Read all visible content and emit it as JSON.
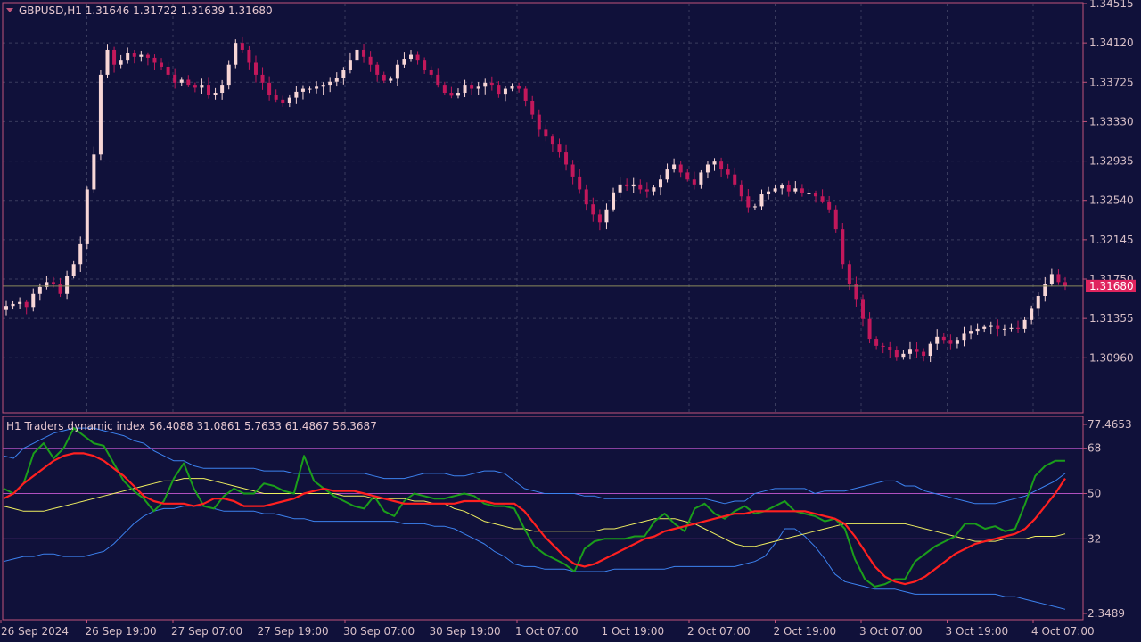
{
  "symbol_header": "GBPUSD,H1  1.31646 1.31722 1.31639 1.31680",
  "current_price_label": "1.31680",
  "indicator_header": "H1  Traders dynamic index 56.4088 31.0861 5.7633 61.4867 56.3687",
  "colors": {
    "background": "#10113a",
    "bull_candle": "#f7d6d6",
    "bear_candle": "#c2185b",
    "axis": "#c0547a",
    "grid": "#3a3c5e",
    "price_line": "#8a8a5a",
    "label_box": "#e0245e",
    "rsi_price_line": "#1b9e1b",
    "signal_line": "#ff2020",
    "market_base_line": "#f0f060",
    "volatility_band": "#3c82f0",
    "level_lines": "#b050c0"
  },
  "chart_data": [
    {
      "type": "candlestick",
      "title": "GBPUSD,H1",
      "price_axis_ticks": [
        "1.34515",
        "1.34120",
        "1.33725",
        "1.33330",
        "1.32935",
        "1.32540",
        "1.32145",
        "1.31750",
        "1.31355",
        "1.30960"
      ],
      "price_tick_values": [
        1.34515,
        1.3412,
        1.33725,
        1.3333,
        1.32935,
        1.3254,
        1.32145,
        1.3175,
        1.31355,
        1.3096
      ],
      "ylim": [
        1.3056,
        1.34515
      ],
      "time_axis_labels": [
        "26 Sep 2024",
        "26 Sep 19:00",
        "27 Sep 07:00",
        "27 Sep 19:00",
        "30 Sep 07:00",
        "30 Sep 19:00",
        "1 Oct 07:00",
        "1 Oct 19:00",
        "2 Oct 07:00",
        "2 Oct 19:00",
        "3 Oct 07:00",
        "3 Oct 19:00",
        "4 Oct 07:00"
      ],
      "last_close": 1.3168,
      "close_series": [
        1.3148,
        1.315,
        1.3152,
        1.3147,
        1.316,
        1.3167,
        1.3172,
        1.317,
        1.316,
        1.3178,
        1.319,
        1.321,
        1.3265,
        1.33,
        1.338,
        1.3405,
        1.339,
        1.3395,
        1.3402,
        1.3398,
        1.34,
        1.3397,
        1.3392,
        1.3388,
        1.338,
        1.3372,
        1.3375,
        1.337,
        1.3367,
        1.337,
        1.336,
        1.3362,
        1.337,
        1.339,
        1.3412,
        1.3405,
        1.3392,
        1.338,
        1.3372,
        1.336,
        1.3355,
        1.3352,
        1.3357,
        1.3363,
        1.3366,
        1.3366,
        1.3368,
        1.337,
        1.3373,
        1.3377,
        1.3385,
        1.3395,
        1.3405,
        1.3398,
        1.339,
        1.338,
        1.3374,
        1.3376,
        1.339,
        1.3396,
        1.34,
        1.3395,
        1.3385,
        1.338,
        1.337,
        1.3362,
        1.3359,
        1.3362,
        1.337,
        1.3366,
        1.3368,
        1.3372,
        1.337,
        1.3361,
        1.3366,
        1.3369,
        1.3366,
        1.3354,
        1.334,
        1.3325,
        1.3318,
        1.331,
        1.3302,
        1.329,
        1.3278,
        1.3265,
        1.325,
        1.324,
        1.3232,
        1.3245,
        1.3262,
        1.327,
        1.3268,
        1.327,
        1.3265,
        1.3263,
        1.3267,
        1.3275,
        1.3285,
        1.329,
        1.3282,
        1.3275,
        1.327,
        1.3282,
        1.329,
        1.3293,
        1.3285,
        1.328,
        1.327,
        1.3258,
        1.3247,
        1.3248,
        1.326,
        1.3263,
        1.3266,
        1.3269,
        1.3263,
        1.3266,
        1.3261,
        1.3261,
        1.3258,
        1.3253,
        1.3245,
        1.3225,
        1.319,
        1.317,
        1.3155,
        1.3135,
        1.3115,
        1.3108,
        1.3107,
        1.3104,
        1.3097,
        1.31,
        1.3105,
        1.3102,
        1.3098,
        1.311,
        1.3117,
        1.3114,
        1.311,
        1.3114,
        1.312,
        1.3123,
        1.3125,
        1.3127,
        1.3128,
        1.3125,
        1.3125,
        1.3126,
        1.3125,
        1.3134,
        1.3146,
        1.3158,
        1.317,
        1.318,
        1.3172,
        1.3168
      ]
    },
    {
      "type": "line",
      "title": "Traders dynamic index",
      "axis_ticks": [
        "77.4653",
        "68",
        "50",
        "32",
        "2.3489"
      ],
      "axis_tick_values": [
        77.4653,
        68,
        50,
        32,
        2.3489
      ],
      "ylim": [
        2.3489,
        77.4653
      ],
      "levels": [
        68,
        50,
        32
      ],
      "series": [
        {
          "key": "rsi_price_line",
          "values": [
            52,
            50,
            54,
            66,
            70,
            64,
            68,
            76,
            73,
            70,
            69,
            62,
            55,
            51,
            48,
            43,
            47,
            56,
            62,
            52,
            45,
            44,
            49,
            52,
            50,
            50,
            54,
            53,
            51,
            50,
            65,
            55,
            52,
            49,
            47,
            45,
            44,
            49,
            43,
            41,
            47,
            50,
            49,
            48,
            48,
            49,
            50,
            49,
            46,
            45,
            45,
            44,
            36,
            29,
            26,
            24,
            22,
            19,
            28,
            31,
            32,
            32,
            32,
            33,
            33,
            39,
            42,
            38,
            35,
            44,
            46,
            42,
            40,
            43,
            45,
            42,
            43,
            45,
            47,
            43,
            42,
            41,
            39,
            40,
            36,
            24,
            16,
            13,
            14,
            16,
            16,
            23,
            26,
            29,
            31,
            33,
            38,
            38,
            36,
            37,
            35,
            36,
            46,
            57,
            61,
            63,
            63
          ]
        },
        {
          "key": "signal_line",
          "values": [
            48,
            50,
            54,
            57,
            60,
            63,
            65,
            66,
            66,
            65,
            63,
            60,
            57,
            53,
            49,
            47,
            46,
            46,
            46,
            45,
            46,
            48,
            48,
            47,
            45,
            45,
            45,
            46,
            47,
            48,
            50,
            51,
            52,
            51,
            51,
            51,
            50,
            49,
            48,
            47,
            46,
            46,
            46,
            46,
            46,
            46,
            47,
            47,
            47,
            46,
            46,
            46,
            43,
            38,
            33,
            29,
            25,
            22,
            21,
            22,
            24,
            26,
            28,
            30,
            32,
            33,
            35,
            36,
            37,
            38,
            39,
            40,
            41,
            42,
            42,
            43,
            43,
            43,
            43,
            43,
            43,
            42,
            41,
            40,
            38,
            33,
            27,
            21,
            17,
            15,
            14,
            15,
            17,
            20,
            23,
            26,
            28,
            30,
            31,
            32,
            33,
            34,
            36,
            40,
            45,
            50,
            56
          ]
        },
        {
          "key": "market_base_line",
          "values": [
            45,
            44,
            43,
            43,
            43,
            44,
            45,
            46,
            47,
            48,
            49,
            50,
            51,
            52,
            53,
            54,
            55,
            55,
            56,
            56,
            56,
            55,
            54,
            53,
            52,
            51,
            50,
            50,
            50,
            50,
            50,
            50,
            50,
            50,
            49,
            49,
            49,
            48,
            48,
            48,
            48,
            47,
            47,
            46,
            46,
            44,
            43,
            41,
            39,
            38,
            37,
            36,
            36,
            35,
            35,
            35,
            35,
            35,
            35,
            35,
            36,
            36,
            37,
            38,
            39,
            40,
            40,
            40,
            39,
            38,
            36,
            34,
            32,
            30,
            29,
            29,
            30,
            31,
            32,
            33,
            34,
            35,
            36,
            37,
            38,
            38,
            38,
            38,
            38,
            38,
            38,
            37,
            36,
            35,
            34,
            33,
            32,
            31,
            31,
            31,
            32,
            32,
            32,
            33,
            33,
            33,
            34
          ]
        },
        {
          "key": "volatility_band",
          "values": [
            65,
            64,
            68,
            70,
            72,
            74,
            75,
            76,
            76,
            76,
            75,
            74,
            73,
            71,
            70,
            67,
            65,
            63,
            63,
            61,
            60,
            60,
            60,
            60,
            60,
            60,
            59,
            59,
            59,
            58,
            58,
            58,
            58,
            58,
            58,
            58,
            58,
            57,
            56,
            56,
            56,
            57,
            58,
            58,
            58,
            57,
            57,
            58,
            59,
            59,
            58,
            55,
            52,
            51,
            50,
            50,
            50,
            50,
            49,
            49,
            48,
            48,
            48,
            48,
            48,
            48,
            48,
            48,
            48,
            48,
            48,
            47,
            46,
            47,
            47,
            50,
            51,
            52,
            52,
            52,
            52,
            50,
            51,
            51,
            51,
            52,
            53,
            54,
            55,
            55,
            53,
            53,
            51,
            50,
            49,
            48,
            47,
            46,
            46,
            46,
            47,
            48,
            49,
            51,
            53,
            55,
            58
          ]
        },
        {
          "key": "volatility_band",
          "values": [
            23,
            24,
            25,
            25,
            26,
            26,
            25,
            25,
            25,
            26,
            27,
            30,
            34,
            38,
            41,
            43,
            44,
            44,
            45,
            45,
            45,
            44,
            43,
            43,
            43,
            43,
            42,
            42,
            41,
            40,
            40,
            39,
            39,
            39,
            39,
            39,
            39,
            39,
            39,
            39,
            38,
            38,
            38,
            37,
            37,
            36,
            34,
            32,
            30,
            27,
            25,
            22,
            21,
            21,
            20,
            20,
            20,
            19,
            19,
            19,
            19,
            20,
            20,
            20,
            20,
            20,
            20,
            21,
            21,
            21,
            21,
            21,
            21,
            21,
            22,
            23,
            25,
            30,
            36,
            36,
            33,
            29,
            24,
            18,
            15,
            14,
            13,
            12,
            12,
            12,
            11,
            10,
            10,
            10,
            10,
            10,
            10,
            10,
            10,
            10,
            9,
            9,
            8,
            7,
            6,
            5,
            4
          ]
        }
      ]
    }
  ]
}
